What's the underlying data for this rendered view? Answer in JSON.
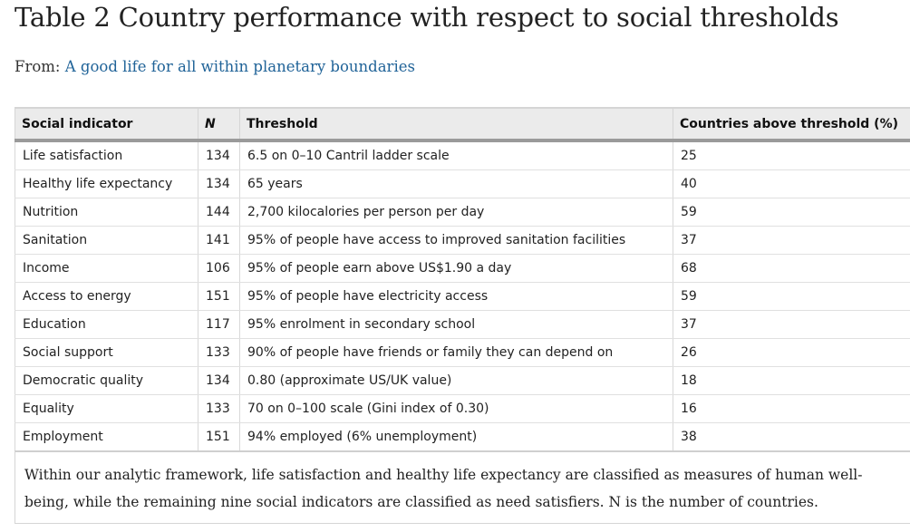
{
  "title": "Table 2 Country performance with respect to social thresholds",
  "source": {
    "prefix": "From:",
    "link_text": "A good life for all within planetary boundaries"
  },
  "table": {
    "headers": [
      "Social indicator",
      "N",
      "Threshold",
      "Countries above threshold (%)"
    ],
    "rows": [
      [
        "Life satisfaction",
        "134",
        "6.5 on 0–10 Cantril ladder scale",
        "25"
      ],
      [
        "Healthy life expectancy",
        "134",
        "65 years",
        "40"
      ],
      [
        "Nutrition",
        "144",
        "2,700 kilocalories per person per day",
        "59"
      ],
      [
        "Sanitation",
        "141",
        "95% of people have access to improved sanitation facilities",
        "37"
      ],
      [
        "Income",
        "106",
        "95% of people earn above US$1.90 a day",
        "68"
      ],
      [
        "Access to energy",
        "151",
        "95% of people have electricity access",
        "59"
      ],
      [
        "Education",
        "117",
        "95% enrolment in secondary school",
        "37"
      ],
      [
        "Social support",
        "133",
        "90% of people have friends or family they can depend on",
        "26"
      ],
      [
        "Democratic quality",
        "134",
        "0.80 (approximate US/UK value)",
        "18"
      ],
      [
        "Equality",
        "133",
        "70 on 0–100 scale (Gini index of 0.30)",
        "16"
      ],
      [
        "Employment",
        "151",
        "94% employed (6% unemployment)",
        "38"
      ]
    ]
  },
  "footnote": "Within our analytic framework, life satisfaction and healthy life expectancy are classified as measures of human well-being, while the remaining nine social indicators are classified as need satisfiers. N is the number of countries.",
  "colors": {
    "link": "#206398",
    "header_bg": "#ebebeb"
  }
}
